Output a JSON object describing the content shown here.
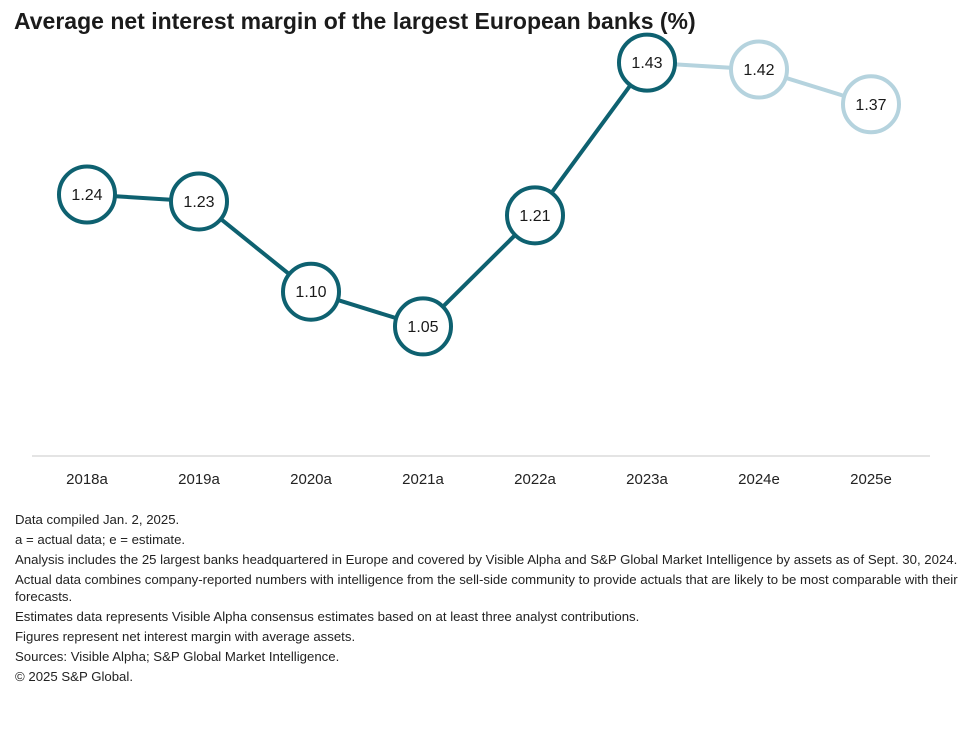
{
  "chart_data": {
    "type": "line",
    "title": "Average net interest margin of the largest European banks (%)",
    "categories": [
      "2018a",
      "2019a",
      "2020a",
      "2021a",
      "2022a",
      "2023a",
      "2024e",
      "2025e"
    ],
    "series": [
      {
        "values": [
          1.24,
          1.23,
          1.1,
          1.05,
          1.21,
          1.43,
          1.42,
          1.37
        ],
        "labels": [
          "1.24",
          "1.23",
          "1.10",
          "1.05",
          "1.21",
          "1.43",
          "1.42",
          "1.37"
        ],
        "actual_color": "#0e6170",
        "estimate_color": "#b5d3de",
        "estimate_from_index": 5
      }
    ],
    "ylim": [
      0.8,
      1.5
    ],
    "grid": false,
    "legend": "none"
  },
  "notes": [
    "Data compiled Jan. 2, 2025.",
    "a = actual data; e = estimate.",
    "Analysis includes the 25 largest banks headquartered in Europe and covered by Visible Alpha and S&P Global Market Intelligence by assets as of Sept. 30, 2024.",
    "Actual data combines company-reported numbers with intelligence from the sell-side community to provide actuals that are likely to be most comparable with their forecasts.",
    "Estimates data represents Visible Alpha consensus estimates based on at least three analyst contributions.",
    "Figures represent net interest margin with average assets.",
    "Sources: Visible Alpha; S&P Global Market Intelligence.",
    "© 2025 S&P Global."
  ]
}
